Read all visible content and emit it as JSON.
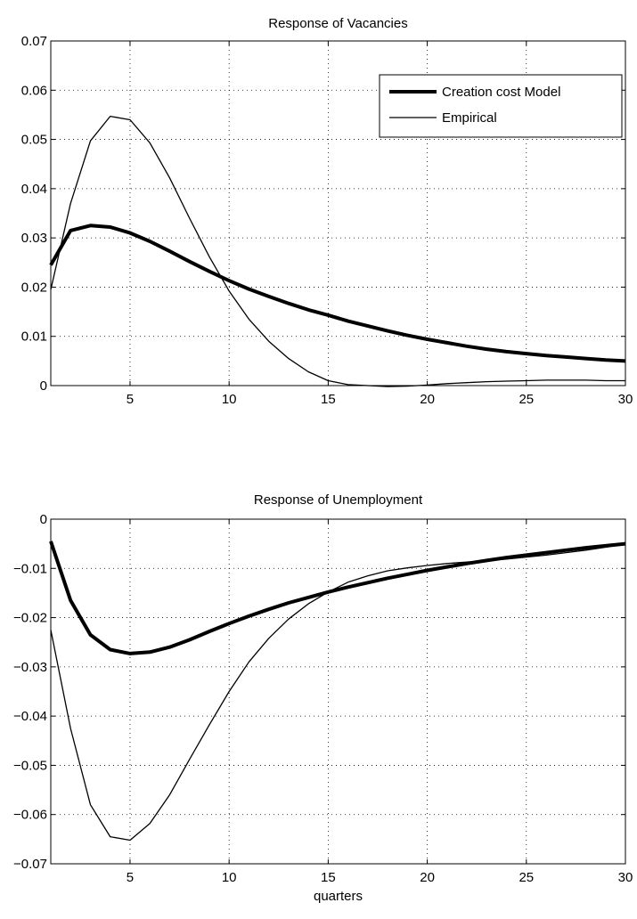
{
  "chart_data": [
    {
      "type": "line",
      "title": "Response of Vacancies",
      "xlabel": "",
      "ylabel": "",
      "xlim": [
        1,
        30
      ],
      "ylim": [
        0,
        0.07
      ],
      "grid": true,
      "legend_position": "top-right",
      "x_ticks": [
        5,
        10,
        15,
        20,
        25,
        30
      ],
      "x_tick_labels": [
        "5",
        "10",
        "15",
        "20",
        "25",
        "30"
      ],
      "y_ticks": [
        0,
        0.01,
        0.02,
        0.03,
        0.04,
        0.05,
        0.06,
        0.07
      ],
      "y_tick_labels": [
        "0",
        "0.01",
        "0.02",
        "0.03",
        "0.04",
        "0.05",
        "0.06",
        "0.07"
      ],
      "x": [
        1,
        2,
        3,
        4,
        5,
        6,
        7,
        8,
        9,
        10,
        11,
        12,
        13,
        14,
        15,
        16,
        17,
        18,
        19,
        20,
        21,
        22,
        23,
        24,
        25,
        26,
        27,
        28,
        29,
        30
      ],
      "series": [
        {
          "name": "Creation cost Model",
          "style": "thick",
          "color": "#000000",
          "values": [
            0.0245,
            0.0315,
            0.0325,
            0.0322,
            0.031,
            0.0293,
            0.0273,
            0.0252,
            0.0232,
            0.0213,
            0.0196,
            0.0181,
            0.0167,
            0.0154,
            0.0143,
            0.0131,
            0.0121,
            0.0111,
            0.0102,
            0.0094,
            0.0087,
            0.008,
            0.0074,
            0.0069,
            0.0065,
            0.0061,
            0.0058,
            0.0055,
            0.0052,
            0.005
          ]
        },
        {
          "name": "Empirical",
          "style": "thin",
          "color": "#000000",
          "values": [
            0.0195,
            0.037,
            0.0497,
            0.0547,
            0.054,
            0.0493,
            0.0422,
            0.034,
            0.0262,
            0.0192,
            0.0135,
            0.009,
            0.0055,
            0.0028,
            0.001,
            0.0002,
            0.0,
            -0.0002,
            -0.0001,
            0.0001,
            0.0004,
            0.0006,
            0.0008,
            0.0009,
            0.001,
            0.0011,
            0.0011,
            0.0011,
            0.001,
            0.001
          ]
        }
      ]
    },
    {
      "type": "line",
      "title": "Response of Unemployment",
      "xlabel": "quarters",
      "ylabel": "",
      "xlim": [
        1,
        30
      ],
      "ylim": [
        -0.07,
        0
      ],
      "grid": true,
      "x_ticks": [
        5,
        10,
        15,
        20,
        25,
        30
      ],
      "x_tick_labels": [
        "5",
        "10",
        "15",
        "20",
        "25",
        "30"
      ],
      "y_ticks": [
        0,
        -0.01,
        -0.02,
        -0.03,
        -0.04,
        -0.05,
        -0.06,
        -0.07
      ],
      "y_tick_labels": [
        "0",
        "−0.01",
        "−0.02",
        "−0.03",
        "−0.04",
        "−0.05",
        "−0.06",
        "−0.07"
      ],
      "x": [
        1,
        2,
        3,
        4,
        5,
        6,
        7,
        8,
        9,
        10,
        11,
        12,
        13,
        14,
        15,
        16,
        17,
        18,
        19,
        20,
        21,
        22,
        23,
        24,
        25,
        26,
        27,
        28,
        29,
        30
      ],
      "series": [
        {
          "name": "Creation cost Model",
          "style": "thick",
          "color": "#000000",
          "values": [
            -0.0045,
            -0.0165,
            -0.0235,
            -0.0265,
            -0.0273,
            -0.027,
            -0.026,
            -0.0245,
            -0.0228,
            -0.0212,
            -0.0197,
            -0.0183,
            -0.017,
            -0.0159,
            -0.0148,
            -0.0138,
            -0.0129,
            -0.012,
            -0.0112,
            -0.0104,
            -0.0097,
            -0.009,
            -0.0084,
            -0.0078,
            -0.0073,
            -0.0068,
            -0.0063,
            -0.0058,
            -0.0054,
            -0.005
          ]
        },
        {
          "name": "Empirical",
          "style": "thin",
          "color": "#000000",
          "values": [
            -0.0225,
            -0.0425,
            -0.058,
            -0.0645,
            -0.0652,
            -0.0618,
            -0.056,
            -0.0488,
            -0.0418,
            -0.035,
            -0.029,
            -0.0242,
            -0.0203,
            -0.0172,
            -0.0148,
            -0.0128,
            -0.0115,
            -0.0105,
            -0.0099,
            -0.0094,
            -0.009,
            -0.0087,
            -0.0084,
            -0.0081,
            -0.0077,
            -0.0073,
            -0.0068,
            -0.0063,
            -0.0057,
            -0.0051
          ]
        }
      ]
    }
  ]
}
